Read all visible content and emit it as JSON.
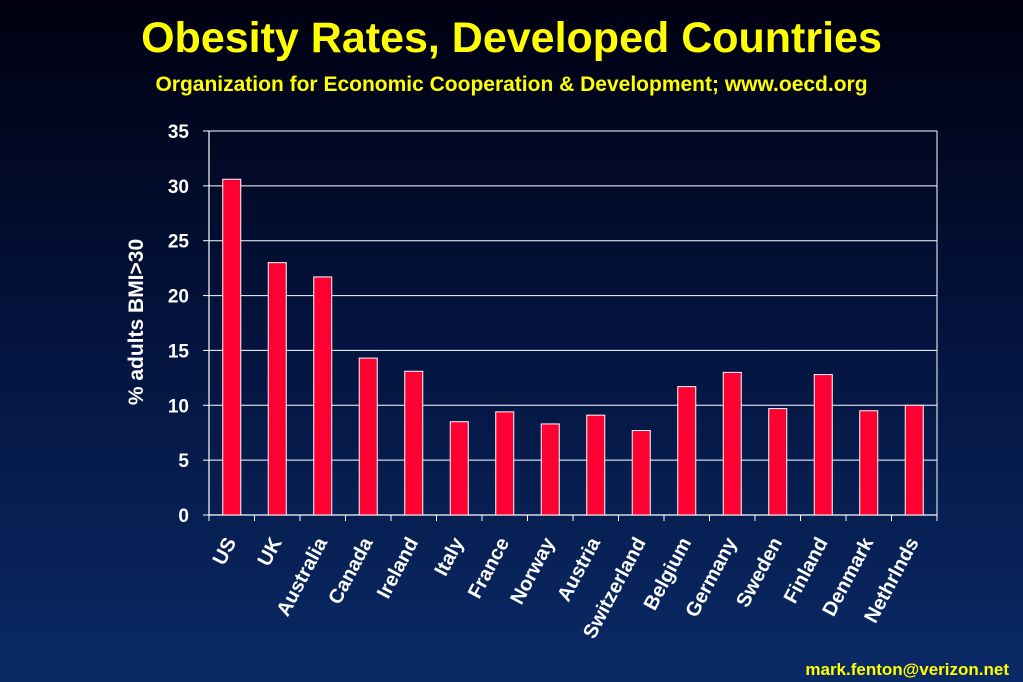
{
  "title": "Obesity Rates, Developed Countries",
  "subtitle": "Organization for Economic Cooperation & Development; www.oecd.org",
  "credit": "mark.fenton@verizon.net",
  "colors": {
    "background": "#03123a",
    "title": "#ffff00",
    "bar": "#ff0033",
    "text": "#ffffff"
  },
  "chart_data": {
    "type": "bar",
    "categories": [
      "US",
      "UK",
      "Australia",
      "Canada",
      "Ireland",
      "Italy",
      "France",
      "Norway",
      "Austria",
      "Switzerland",
      "Belgium",
      "Germany",
      "Sweden",
      "Finland",
      "Denmark",
      "Nethrlnds"
    ],
    "values": [
      30.6,
      23.0,
      21.7,
      14.3,
      13.1,
      8.5,
      9.4,
      8.3,
      9.1,
      7.7,
      11.7,
      13.0,
      9.7,
      12.8,
      9.5,
      10.0
    ],
    "ylabel": "% adults BMI>30",
    "xlabel": "",
    "ylim": [
      0,
      35
    ],
    "yticks": [
      0,
      5,
      10,
      15,
      20,
      25,
      30,
      35
    ],
    "grid": true,
    "legend": "none"
  }
}
